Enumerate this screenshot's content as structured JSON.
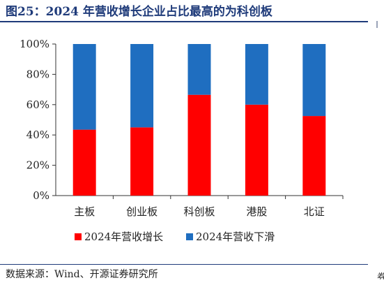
{
  "figure": {
    "title": "图25：2024 年营收增长企业占比最高的为科创板",
    "source": "数据来源：Wind、开源证券研究所",
    "side_mark": "券"
  },
  "chart_data": {
    "type": "bar",
    "stacked": true,
    "categories": [
      "主板",
      "创业板",
      "科创板",
      "港股",
      "北证"
    ],
    "series": [
      {
        "name": "2024年营收增长",
        "color": "#ff0000",
        "values": [
          43.5,
          45,
          66.5,
          60,
          52.5
        ]
      },
      {
        "name": "2024年营收下滑",
        "color": "#1f6ec0",
        "values": [
          56.5,
          55,
          33.5,
          40,
          47.5
        ]
      }
    ],
    "ylim": [
      0,
      100
    ],
    "yticks": [
      "0%",
      "20%",
      "40%",
      "60%",
      "80%",
      "100%"
    ],
    "grid": false,
    "legend": "bottom"
  }
}
